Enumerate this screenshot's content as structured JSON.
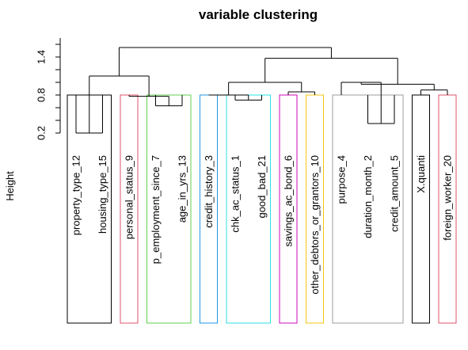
{
  "chart_data": {
    "type": "dendrogram",
    "title": "variable clustering",
    "ylabel": "Height",
    "xlabel": "",
    "ylim": [
      0.2,
      1.7
    ],
    "yticks": [
      0.2,
      0.8,
      1.4
    ],
    "leaves": [
      "property_type_12",
      "housing_type_15",
      "personal_status_9",
      "p_employment_since_7",
      "age_in_yrs_13",
      "credit_history_3",
      "chk_ac_status_1",
      "good_bad_21",
      "savings_ac_bond_6",
      "other_debtors_or_grantors_10",
      "purpose_4",
      "duration_month_2",
      "credit_amount_5",
      "X.quanti",
      "foreign_worker_20"
    ],
    "merges": [
      {
        "left": "property_type_12",
        "right": "housing_type_15",
        "height": 0.2
      },
      {
        "left": "p_employment_since_7",
        "right": "age_in_yrs_13",
        "height": 0.63
      },
      {
        "left": "chk_ac_status_1",
        "right": "good_bad_21",
        "height": 0.72
      },
      {
        "left": "duration_month_2",
        "right": "credit_amount_5",
        "height": 0.35
      },
      {
        "left": "X.quanti",
        "right": "foreign_worker_20",
        "height": 0.88
      },
      {
        "left": "personal_status_9",
        "right": "p_employment_since_7 + age_in_yrs_13",
        "height": 0.78
      },
      {
        "left": "credit_history_3",
        "right": "chk_ac_status_1 + good_bad_21",
        "height": 0.8
      },
      {
        "left": "savings_ac_bond_6",
        "right": "other_debtors_or_grantors_10",
        "height": 0.85
      },
      {
        "left": "purpose_4",
        "right": "duration_month_2 + credit_amount_5",
        "height": 1.0
      },
      {
        "left": "credit_history_3 … good_bad_21",
        "right": "savings_ac_bond_6 + other_debtors_or_grantors_10",
        "height": 1.0
      },
      {
        "left": "purpose_4 … credit_amount_5",
        "right": "X.quanti + foreign_worker_20",
        "height": 0.97
      },
      {
        "left": "property_type_12 + housing_type_15",
        "right": "personal_status_9 … age_in_yrs_13",
        "height": 1.1
      },
      {
        "left": "credit_history_3 … other_debtors_or_grantors_10",
        "right": "purpose_4 … foreign_worker_20",
        "height": 1.38
      },
      {
        "left": "property_type_12 … age_in_yrs_13",
        "right": "credit_history_3 … foreign_worker_20",
        "height": 1.55
      }
    ],
    "cluster_boxes": [
      {
        "leaves": [
          "property_type_12",
          "housing_type_15"
        ],
        "color": "#000000"
      },
      {
        "leaves": [
          "personal_status_9"
        ],
        "color": "#DF536B"
      },
      {
        "leaves": [
          "p_employment_since_7",
          "age_in_yrs_13"
        ],
        "color": "#61D04F"
      },
      {
        "leaves": [
          "credit_history_3"
        ],
        "color": "#2297E6"
      },
      {
        "leaves": [
          "chk_ac_status_1",
          "good_bad_21"
        ],
        "color": "#28E2E5"
      },
      {
        "leaves": [
          "savings_ac_bond_6"
        ],
        "color": "#CD0BBC"
      },
      {
        "leaves": [
          "other_debtors_or_grantors_10"
        ],
        "color": "#F5C710"
      },
      {
        "leaves": [
          "purpose_4",
          "duration_month_2",
          "credit_amount_5"
        ],
        "color": "#9E9E9E"
      },
      {
        "leaves": [
          "X.quanti"
        ],
        "color": "#000000"
      },
      {
        "leaves": [
          "foreign_worker_20"
        ],
        "color": "#DF536B"
      }
    ]
  }
}
